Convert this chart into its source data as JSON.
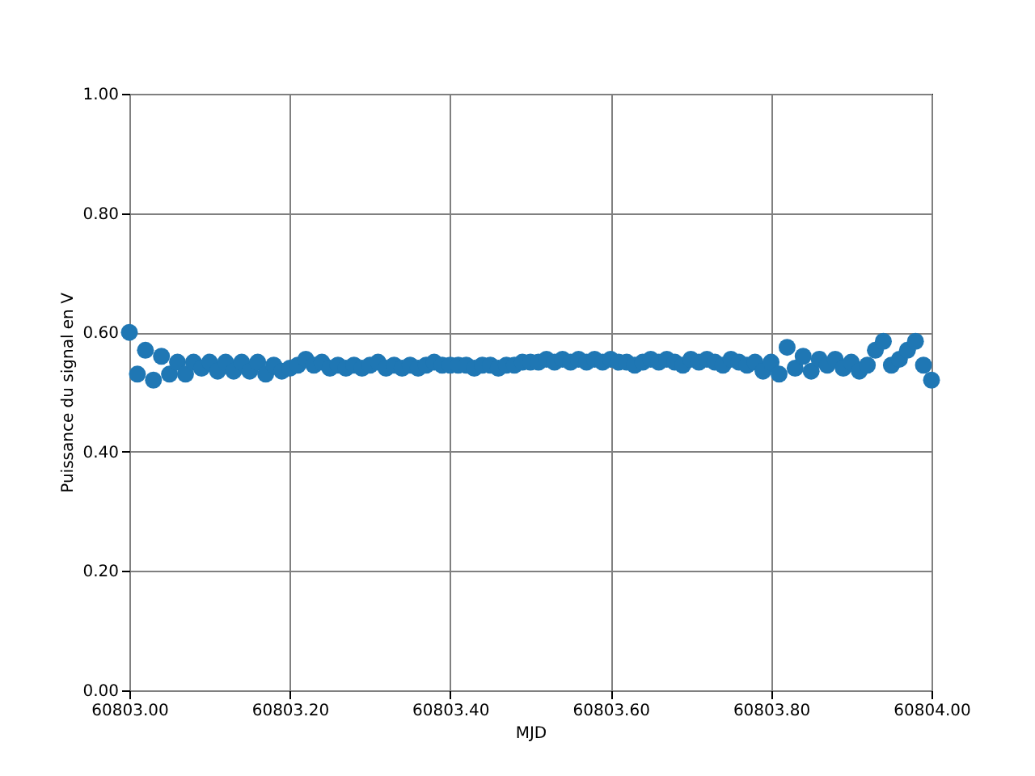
{
  "chart_data": {
    "type": "scatter",
    "xlabel": "MJD",
    "ylabel": "Puissance du signal en V",
    "color": "#1f77b4",
    "marker": "circle",
    "grid": true,
    "x": [
      60803.0,
      60803.01,
      60803.02,
      60803.03,
      60803.04,
      60803.05,
      60803.06,
      60803.07,
      60803.08,
      60803.09,
      60803.1,
      60803.11,
      60803.12,
      60803.13,
      60803.14,
      60803.15,
      60803.16,
      60803.17,
      60803.18,
      60803.19,
      60803.2,
      60803.21,
      60803.22,
      60803.23,
      60803.24,
      60803.25,
      60803.26,
      60803.27,
      60803.28,
      60803.29,
      60803.3,
      60803.31,
      60803.32,
      60803.33,
      60803.34,
      60803.35,
      60803.36,
      60803.37,
      60803.38,
      60803.39,
      60803.4,
      60803.41,
      60803.42,
      60803.43,
      60803.44,
      60803.45,
      60803.46,
      60803.47,
      60803.48,
      60803.49,
      60803.5,
      60803.51,
      60803.52,
      60803.53,
      60803.54,
      60803.55,
      60803.56,
      60803.57,
      60803.58,
      60803.59,
      60803.6,
      60803.61,
      60803.62,
      60803.63,
      60803.64,
      60803.65,
      60803.66,
      60803.67,
      60803.68,
      60803.69,
      60803.7,
      60803.71,
      60803.72,
      60803.73,
      60803.74,
      60803.75,
      60803.76,
      60803.77,
      60803.78,
      60803.79,
      60803.8,
      60803.81,
      60803.82,
      60803.83,
      60803.84,
      60803.85,
      60803.86,
      60803.87,
      60803.88,
      60803.89,
      60803.9,
      60803.91,
      60803.92,
      60803.93,
      60803.94,
      60803.95,
      60803.96,
      60803.97,
      60803.98,
      60803.99,
      60804.0
    ],
    "values": [
      0.6,
      0.53,
      0.57,
      0.52,
      0.56,
      0.53,
      0.55,
      0.53,
      0.55,
      0.54,
      0.55,
      0.535,
      0.55,
      0.535,
      0.55,
      0.535,
      0.55,
      0.53,
      0.545,
      0.535,
      0.54,
      0.545,
      0.555,
      0.545,
      0.55,
      0.54,
      0.545,
      0.54,
      0.545,
      0.54,
      0.545,
      0.55,
      0.54,
      0.545,
      0.54,
      0.545,
      0.54,
      0.545,
      0.55,
      0.545,
      0.545,
      0.545,
      0.545,
      0.54,
      0.545,
      0.545,
      0.54,
      0.545,
      0.545,
      0.55,
      0.55,
      0.55,
      0.555,
      0.55,
      0.555,
      0.55,
      0.555,
      0.55,
      0.555,
      0.55,
      0.555,
      0.55,
      0.55,
      0.545,
      0.55,
      0.555,
      0.55,
      0.555,
      0.55,
      0.545,
      0.555,
      0.55,
      0.555,
      0.55,
      0.545,
      0.555,
      0.55,
      0.545,
      0.55,
      0.535,
      0.55,
      0.53,
      0.575,
      0.54,
      0.56,
      0.535,
      0.555,
      0.545,
      0.555,
      0.54,
      0.55,
      0.535,
      0.545,
      0.57,
      0.585,
      0.545,
      0.555,
      0.57,
      0.585,
      0.545,
      0.52
    ],
    "xlim": [
      60803.0,
      60804.0
    ],
    "xticks": [
      {
        "value": 60803.0,
        "label": "60803.00"
      },
      {
        "value": 60803.2,
        "label": "60803.20"
      },
      {
        "value": 60803.4,
        "label": "60803.40"
      },
      {
        "value": 60803.6,
        "label": "60803.60"
      },
      {
        "value": 60803.8,
        "label": "60803.80"
      },
      {
        "value": 60804.0,
        "label": "60804.00"
      }
    ],
    "ylim": [
      0,
      1
    ],
    "yticks": [
      {
        "value": 0,
        "label": "0.00"
      },
      {
        "value": 0.2,
        "label": "0.20"
      },
      {
        "value": 0.4,
        "label": "0.40"
      },
      {
        "value": 0.6,
        "label": "0.60"
      },
      {
        "value": 0.8,
        "label": "0.80"
      },
      {
        "value": 1,
        "label": "1.00"
      }
    ]
  }
}
